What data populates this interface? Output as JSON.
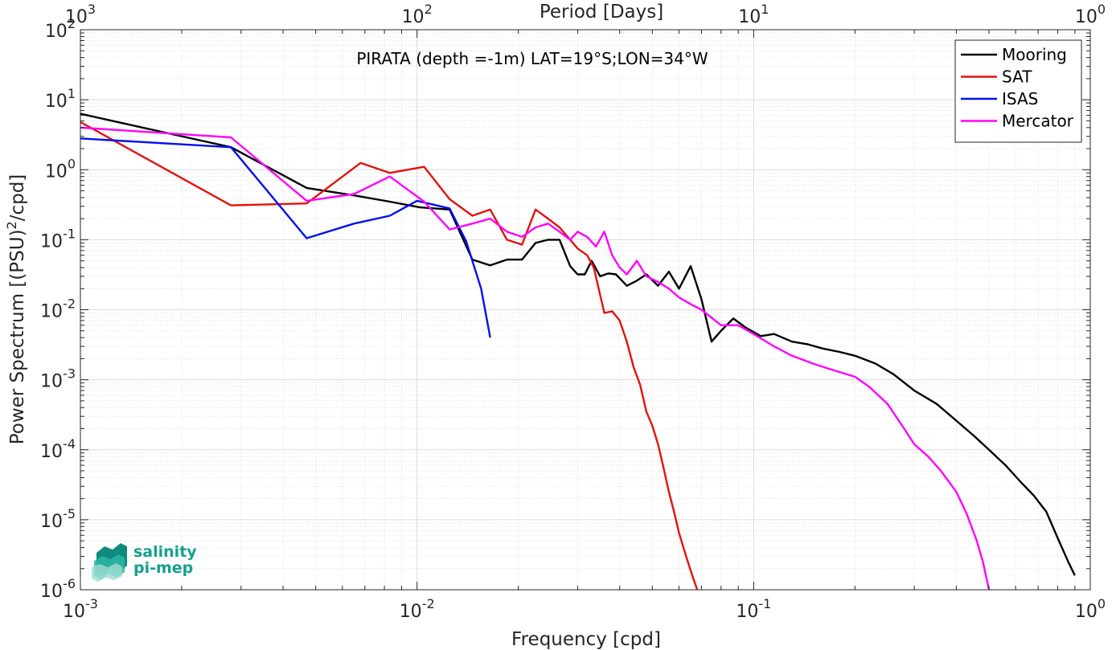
{
  "chart_data": {
    "type": "line",
    "title": "PIRATA (depth =-1m) LAT=19°S;LON=34°W",
    "xlabel": "Frequency [cpd]",
    "ylabel": "Power Spectrum [(PSU)²/cpd]",
    "x2label": "Period [Days]",
    "xscale": "log",
    "yscale": "log",
    "xlim": [
      0.001,
      1
    ],
    "ylim": [
      1e-06,
      100
    ],
    "grid": true,
    "legend_position": "top-right",
    "x_ticks": [
      {
        "value": 0.001,
        "base": "10",
        "exp": "-3"
      },
      {
        "value": 0.01,
        "base": "10",
        "exp": "-2"
      },
      {
        "value": 0.1,
        "base": "10",
        "exp": "-1"
      },
      {
        "value": 1,
        "base": "10",
        "exp": "0"
      }
    ],
    "x2_ticks": [
      {
        "value": 0.001,
        "base": "10",
        "exp": "3"
      },
      {
        "value": 0.01,
        "base": "10",
        "exp": "2"
      },
      {
        "value": 0.1,
        "base": "10",
        "exp": "1"
      },
      {
        "value": 1,
        "base": "10",
        "exp": "0"
      }
    ],
    "y_ticks": [
      {
        "value": 100,
        "base": "10",
        "exp": "2"
      },
      {
        "value": 10,
        "base": "10",
        "exp": "1"
      },
      {
        "value": 1,
        "base": "10",
        "exp": "0"
      },
      {
        "value": 0.1,
        "base": "10",
        "exp": "-1"
      },
      {
        "value": 0.01,
        "base": "10",
        "exp": "-2"
      },
      {
        "value": 0.001,
        "base": "10",
        "exp": "-3"
      },
      {
        "value": 0.0001,
        "base": "10",
        "exp": "-4"
      },
      {
        "value": 1e-05,
        "base": "10",
        "exp": "-5"
      },
      {
        "value": 1e-06,
        "base": "10",
        "exp": "-6"
      }
    ],
    "series": [
      {
        "name": "Mooring",
        "color": "#000000",
        "points": [
          [
            0.001,
            6.3
          ],
          [
            0.0028,
            2.1
          ],
          [
            0.0047,
            0.55
          ],
          [
            0.0065,
            0.43
          ],
          [
            0.0083,
            0.35
          ],
          [
            0.0102,
            0.29
          ],
          [
            0.0125,
            0.27
          ],
          [
            0.0146,
            0.052
          ],
          [
            0.0165,
            0.043
          ],
          [
            0.0185,
            0.052
          ],
          [
            0.0205,
            0.052
          ],
          [
            0.0225,
            0.09
          ],
          [
            0.0245,
            0.1
          ],
          [
            0.0265,
            0.1
          ],
          [
            0.0285,
            0.042
          ],
          [
            0.03,
            0.032
          ],
          [
            0.0315,
            0.032
          ],
          [
            0.033,
            0.05
          ],
          [
            0.035,
            0.03
          ],
          [
            0.037,
            0.033
          ],
          [
            0.039,
            0.032
          ],
          [
            0.042,
            0.022
          ],
          [
            0.045,
            0.026
          ],
          [
            0.048,
            0.032
          ],
          [
            0.052,
            0.022
          ],
          [
            0.056,
            0.035
          ],
          [
            0.06,
            0.02
          ],
          [
            0.065,
            0.042
          ],
          [
            0.07,
            0.014
          ],
          [
            0.075,
            0.0035
          ],
          [
            0.08,
            0.005
          ],
          [
            0.087,
            0.0075
          ],
          [
            0.095,
            0.0055
          ],
          [
            0.105,
            0.0042
          ],
          [
            0.115,
            0.0045
          ],
          [
            0.13,
            0.0035
          ],
          [
            0.145,
            0.0032
          ],
          [
            0.16,
            0.0028
          ],
          [
            0.18,
            0.0025
          ],
          [
            0.2,
            0.0022
          ],
          [
            0.23,
            0.0017
          ],
          [
            0.26,
            0.0012
          ],
          [
            0.3,
            0.0007
          ],
          [
            0.35,
            0.00045
          ],
          [
            0.4,
            0.00026
          ],
          [
            0.45,
            0.00016
          ],
          [
            0.5,
            0.0001
          ],
          [
            0.56,
            6e-05
          ],
          [
            0.62,
            3.5e-05
          ],
          [
            0.68,
            2.2e-05
          ],
          [
            0.74,
            1.3e-05
          ],
          [
            0.8,
            5.5e-06
          ],
          [
            0.86,
            2.5e-06
          ],
          [
            0.9,
            1.6e-06
          ]
        ]
      },
      {
        "name": "SAT",
        "color": "#e3120b",
        "points": [
          [
            0.001,
            4.8
          ],
          [
            0.0028,
            0.31
          ],
          [
            0.0047,
            0.33
          ],
          [
            0.0068,
            1.25
          ],
          [
            0.0083,
            0.9
          ],
          [
            0.0105,
            1.1
          ],
          [
            0.0125,
            0.38
          ],
          [
            0.0146,
            0.22
          ],
          [
            0.0165,
            0.27
          ],
          [
            0.0185,
            0.1
          ],
          [
            0.0205,
            0.085
          ],
          [
            0.0225,
            0.27
          ],
          [
            0.0245,
            0.2
          ],
          [
            0.0265,
            0.15
          ],
          [
            0.0285,
            0.1
          ],
          [
            0.03,
            0.075
          ],
          [
            0.032,
            0.06
          ],
          [
            0.0335,
            0.04
          ],
          [
            0.036,
            0.009
          ],
          [
            0.038,
            0.0095
          ],
          [
            0.04,
            0.007
          ],
          [
            0.042,
            0.0035
          ],
          [
            0.044,
            0.0015
          ],
          [
            0.046,
            0.00085
          ],
          [
            0.048,
            0.00035
          ],
          [
            0.05,
            0.00022
          ],
          [
            0.052,
            0.00012
          ],
          [
            0.054,
            5.5e-05
          ],
          [
            0.056,
            2.5e-05
          ],
          [
            0.058,
            1.3e-05
          ],
          [
            0.06,
            6.5e-06
          ],
          [
            0.063,
            3e-06
          ],
          [
            0.066,
            1.5e-06
          ],
          [
            0.068,
            1e-06
          ]
        ]
      },
      {
        "name": "ISAS",
        "color": "#0010f0",
        "points": [
          [
            0.001,
            2.8
          ],
          [
            0.0028,
            2.1
          ],
          [
            0.0047,
            0.105
          ],
          [
            0.0065,
            0.17
          ],
          [
            0.0083,
            0.22
          ],
          [
            0.01,
            0.36
          ],
          [
            0.0125,
            0.28
          ],
          [
            0.014,
            0.095
          ],
          [
            0.0155,
            0.02
          ],
          [
            0.0165,
            0.004
          ]
        ]
      },
      {
        "name": "Mercator",
        "color": "#ff00ff",
        "points": [
          [
            0.001,
            4.0
          ],
          [
            0.0028,
            2.9
          ],
          [
            0.0047,
            0.36
          ],
          [
            0.0065,
            0.45
          ],
          [
            0.0083,
            0.8
          ],
          [
            0.0105,
            0.35
          ],
          [
            0.0125,
            0.14
          ],
          [
            0.0146,
            0.17
          ],
          [
            0.0165,
            0.2
          ],
          [
            0.0185,
            0.13
          ],
          [
            0.0205,
            0.11
          ],
          [
            0.0225,
            0.15
          ],
          [
            0.0245,
            0.17
          ],
          [
            0.0265,
            0.13
          ],
          [
            0.0285,
            0.1
          ],
          [
            0.03,
            0.13
          ],
          [
            0.032,
            0.11
          ],
          [
            0.034,
            0.08
          ],
          [
            0.036,
            0.13
          ],
          [
            0.038,
            0.06
          ],
          [
            0.04,
            0.04
          ],
          [
            0.042,
            0.032
          ],
          [
            0.045,
            0.05
          ],
          [
            0.048,
            0.03
          ],
          [
            0.052,
            0.025
          ],
          [
            0.056,
            0.02
          ],
          [
            0.06,
            0.015
          ],
          [
            0.065,
            0.012
          ],
          [
            0.07,
            0.01
          ],
          [
            0.08,
            0.006
          ],
          [
            0.09,
            0.006
          ],
          [
            0.1,
            0.0045
          ],
          [
            0.115,
            0.003
          ],
          [
            0.13,
            0.0022
          ],
          [
            0.15,
            0.0017
          ],
          [
            0.17,
            0.0014
          ],
          [
            0.2,
            0.0011
          ],
          [
            0.22,
            0.0008
          ],
          [
            0.25,
            0.00045
          ],
          [
            0.28,
            0.0002
          ],
          [
            0.3,
            0.00012
          ],
          [
            0.33,
            8e-05
          ],
          [
            0.36,
            5e-05
          ],
          [
            0.4,
            2.5e-05
          ],
          [
            0.43,
            1.2e-05
          ],
          [
            0.46,
            5e-06
          ],
          [
            0.48,
            2.5e-06
          ],
          [
            0.5,
            1e-06
          ]
        ]
      }
    ]
  },
  "logo": {
    "line1": "salinity",
    "line2": "pi-mep"
  }
}
